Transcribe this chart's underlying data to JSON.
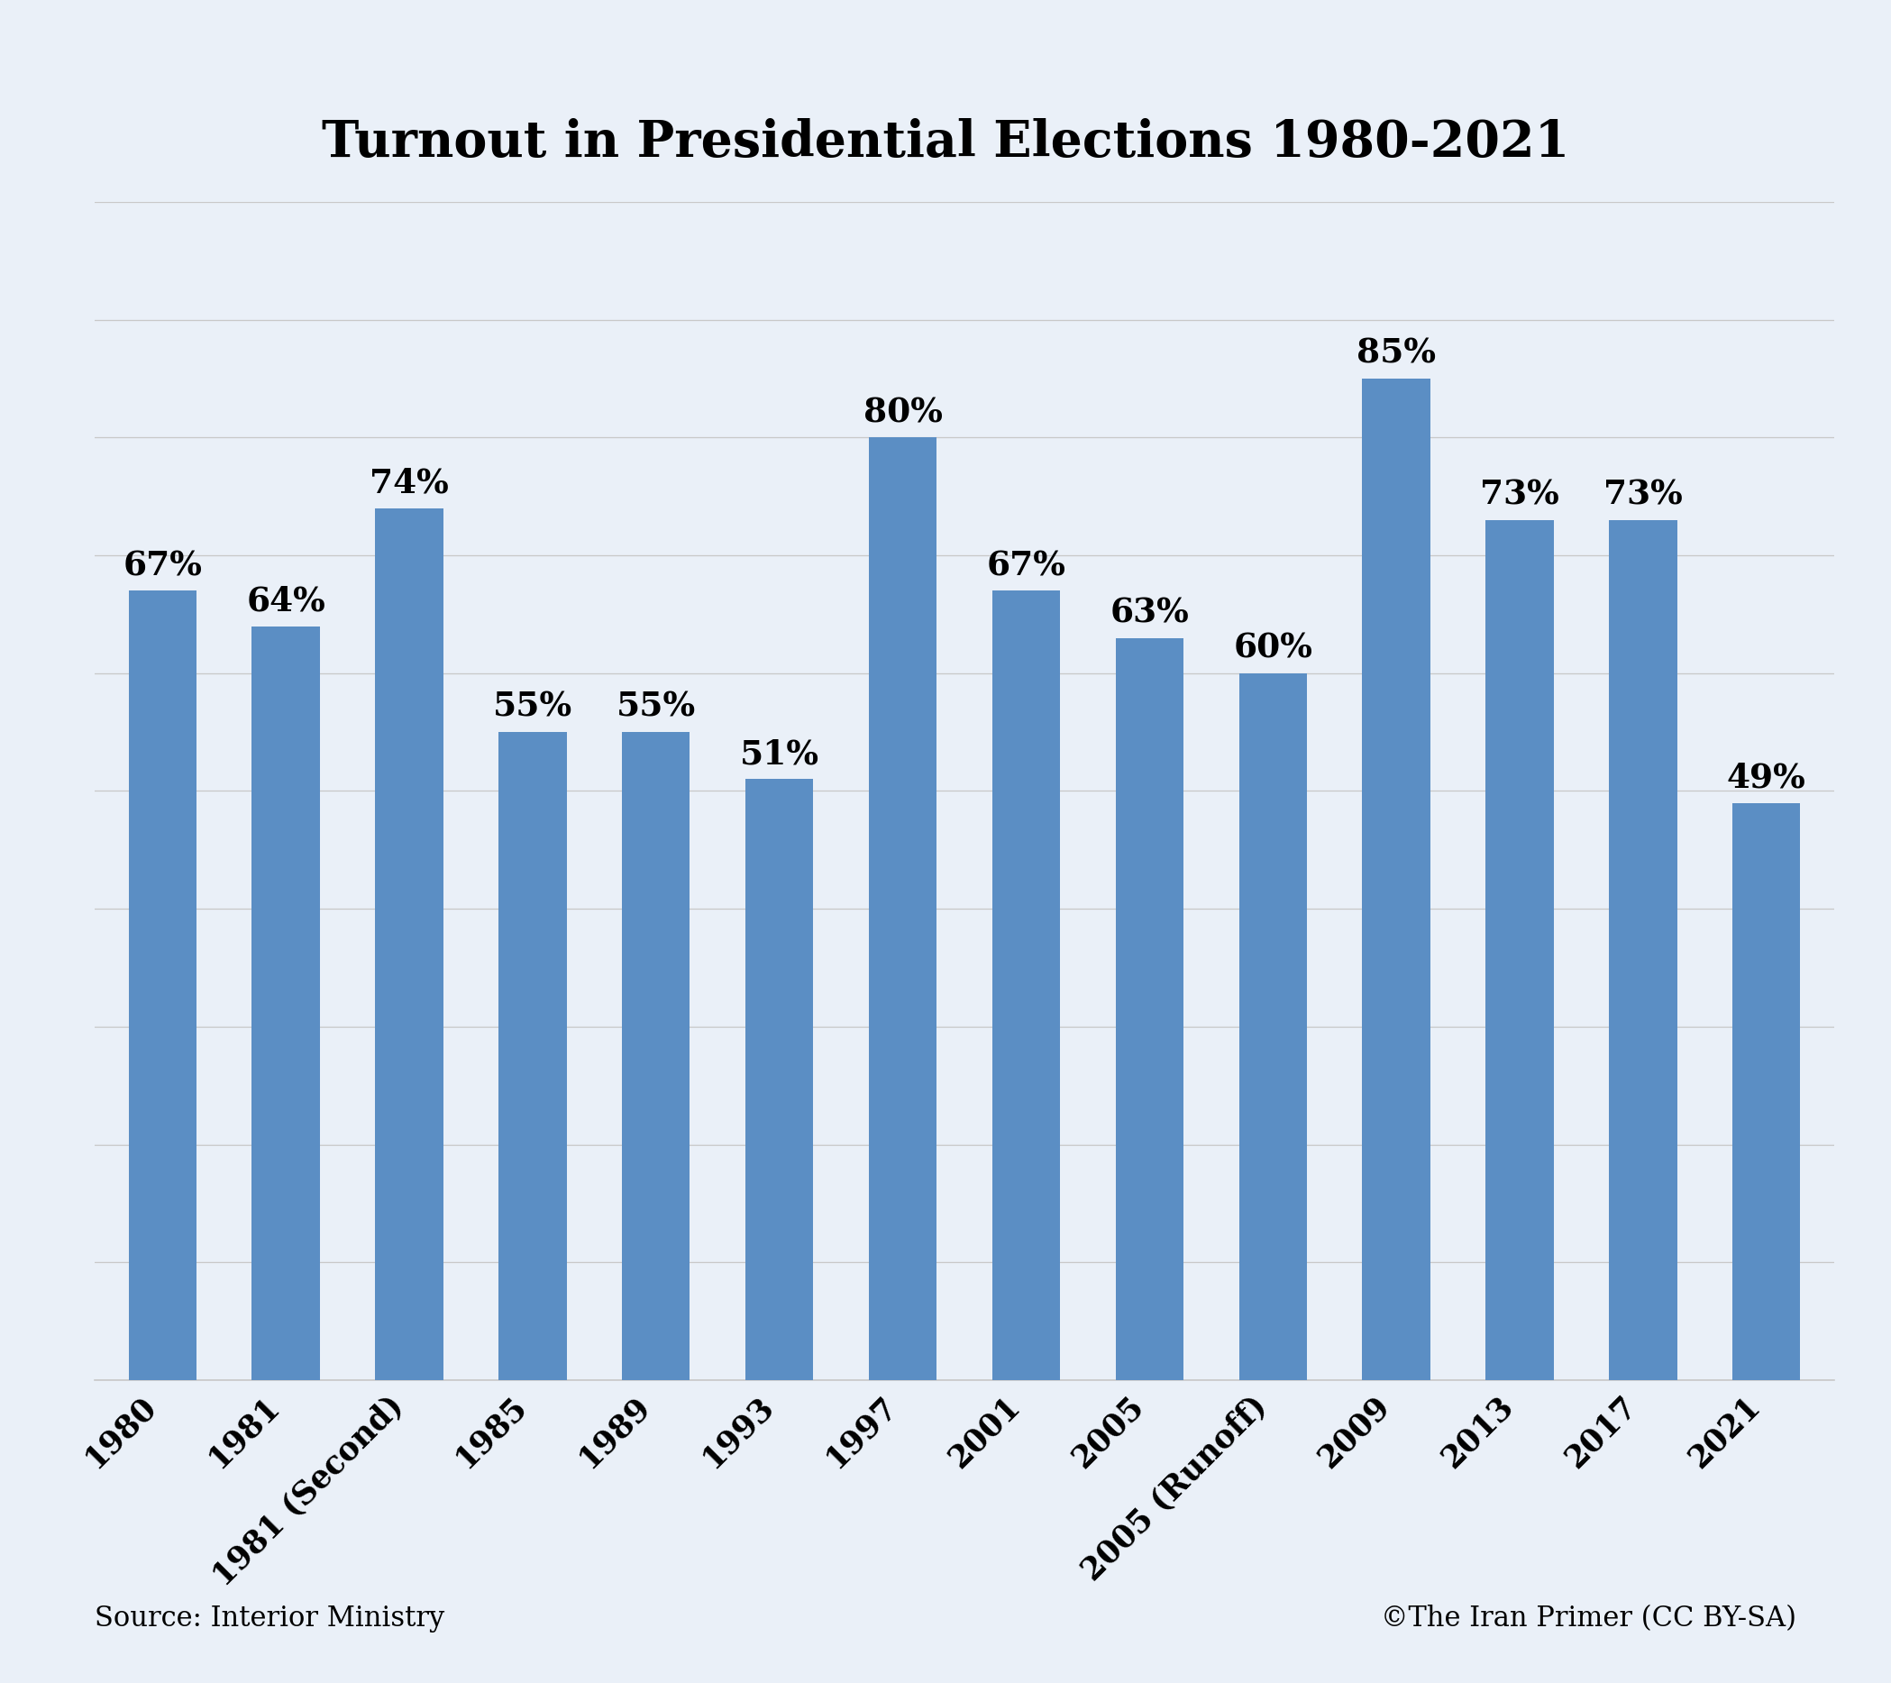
{
  "title": "Turnout in Presidential Elections 1980-2021",
  "categories": [
    "1980",
    "1981",
    "1981 (Second)",
    "1985",
    "1989",
    "1993",
    "1997",
    "2001",
    "2005",
    "2005 (Runoff)",
    "2009",
    "2013",
    "2017",
    "2021"
  ],
  "values": [
    67,
    64,
    74,
    55,
    55,
    51,
    80,
    67,
    63,
    60,
    85,
    73,
    73,
    49
  ],
  "bar_color": "#5b8ec4",
  "background_color": "#eaf0f8",
  "title_fontsize": 40,
  "label_fontsize": 27,
  "tick_fontsize": 25,
  "source_text": "Source: Interior Ministry",
  "copyright_text": "©The Iran Primer (CC BY-SA)",
  "ylim": [
    0,
    100
  ],
  "grid_color": "#c8c8c8",
  "source_fontsize": 22
}
